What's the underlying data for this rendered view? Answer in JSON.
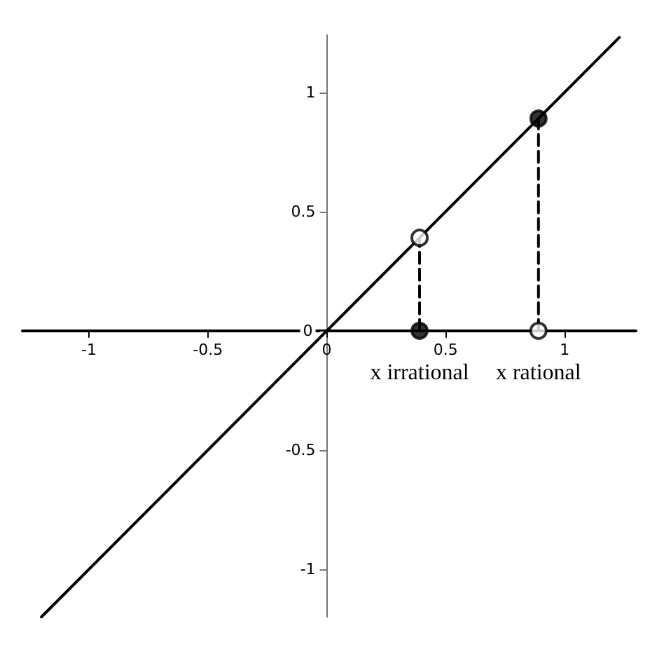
{
  "chart_data": {
    "type": "line",
    "xlim": [
      -1.28,
      1.3
    ],
    "ylim": [
      -1.2,
      1.24
    ],
    "xticks": [
      -1,
      -0.5,
      0,
      0.5,
      1
    ],
    "yticks": [
      -1,
      -0.5,
      0,
      0.5,
      1
    ],
    "grid": false,
    "series": [
      {
        "color": "#000000",
        "x": [
          -1.2,
          1.23
        ],
        "values": [
          -1.2,
          1.23
        ],
        "marker": "none",
        "line_style": "solid"
      },
      {
        "color": "#000000",
        "x": [
          0.39,
          0.39
        ],
        "values": [
          0,
          0.39
        ],
        "marker": "none",
        "line_style": "dashed"
      },
      {
        "color": "#000000",
        "x": [
          0.89,
          0.89
        ],
        "values": [
          0,
          0.89
        ],
        "marker": "none",
        "line_style": "dashed"
      },
      {
        "type": "scatter",
        "color": "#000000",
        "x": [
          0.39,
          0.89
        ],
        "values": [
          0,
          0.89
        ],
        "marker": "circle"
      },
      {
        "type": "scatter",
        "color": "#ffffff",
        "x": [
          0.39,
          0.89
        ],
        "values": [
          0.39,
          0
        ],
        "marker": "circle"
      }
    ],
    "annotations": [
      {
        "text": "x irrational",
        "x": 0.39,
        "y": 0
      },
      {
        "text": "x rational",
        "x": 0.89,
        "y": 0
      }
    ]
  }
}
